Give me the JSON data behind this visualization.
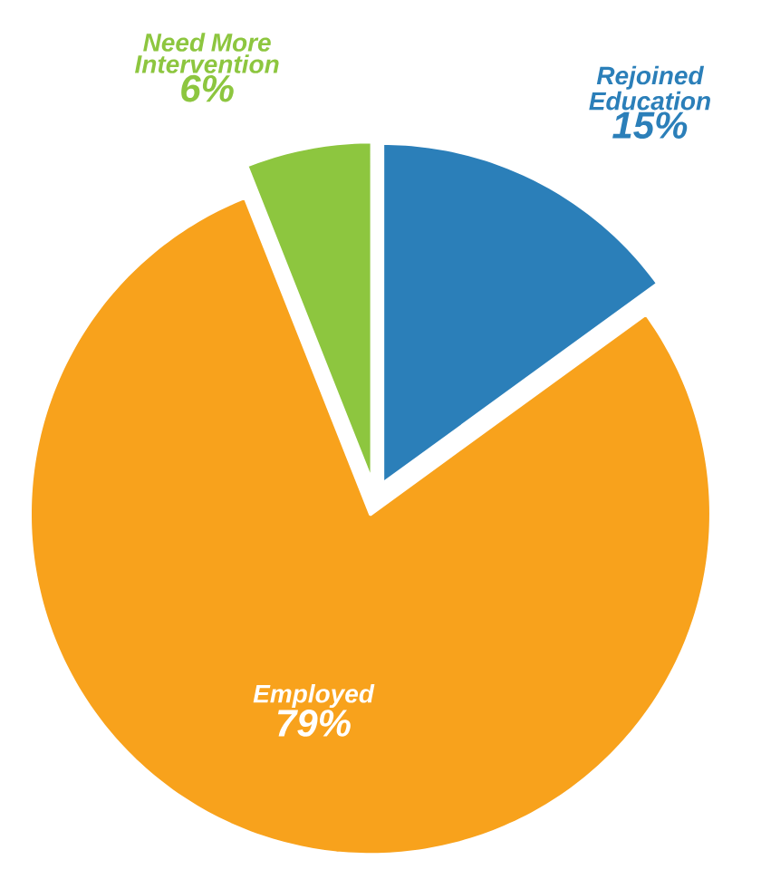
{
  "chart_data": {
    "type": "pie",
    "categories": [
      "Rejoined Education",
      "Employed",
      "Need More Intervention"
    ],
    "values": [
      15,
      79,
      6
    ],
    "colors": [
      "#2b7fb9",
      "#f8a21c",
      "#8dc63f"
    ],
    "value_labels": [
      "15%",
      "79%",
      "6%"
    ]
  }
}
